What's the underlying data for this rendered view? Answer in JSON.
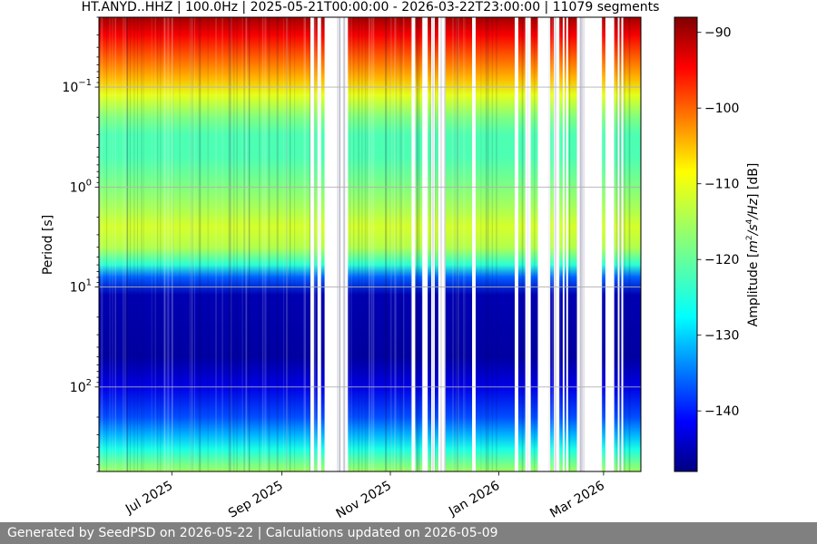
{
  "chart_data": {
    "type": "heatmap",
    "title": "HT.ANYD..HHZ | 100.0Hz | 2025-05-21T00:00:00 - 2026-03-22T23:00:00 | 11079 segments",
    "xlabel": "",
    "ylabel": "Period [s]",
    "colorbar_label": "Amplitude [m²/s⁴/Hz] [dB]",
    "colorbar_label_parts": {
      "prefix": "Amplitude [",
      "m": "m",
      "m_exp": "2",
      "s": "/s",
      "s_exp": "4",
      "hz": "/Hz",
      "suffix": "] [dB]"
    },
    "colorbar_range": [
      -148,
      -88
    ],
    "colorbar_ticks": [
      -90,
      -100,
      -110,
      -120,
      -130,
      -140
    ],
    "colorbar_tick_labels": [
      "−90",
      "−100",
      "−110",
      "−120",
      "−130",
      "−140"
    ],
    "y_scale": "log",
    "y_inverted": true,
    "ylim": [
      0.02,
      700
    ],
    "y_ticks": [
      0.1,
      1,
      10,
      100
    ],
    "y_tick_labels": [
      {
        "base": "10",
        "exp": "−1"
      },
      {
        "base": "10",
        "exp": "0"
      },
      {
        "base": "10",
        "exp": "1"
      },
      {
        "base": "10",
        "exp": "2"
      }
    ],
    "x_range": [
      "2025-05-21",
      "2026-03-22"
    ],
    "x_ticks": [
      {
        "date": "2025-07-01",
        "label": "Jul 2025"
      },
      {
        "date": "2025-09-01",
        "label": "Sep 2025"
      },
      {
        "date": "2025-11-01",
        "label": "Nov 2025"
      },
      {
        "date": "2026-01-01",
        "label": "Jan 2026"
      },
      {
        "date": "2026-03-01",
        "label": "Mar 2026"
      }
    ],
    "grid": true,
    "colormap": "jet",
    "profile_db": [
      {
        "period": 0.02,
        "db": -90
      },
      {
        "period": 0.03,
        "db": -95
      },
      {
        "period": 0.05,
        "db": -101
      },
      {
        "period": 0.08,
        "db": -106
      },
      {
        "period": 0.12,
        "db": -112
      },
      {
        "period": 0.2,
        "db": -118
      },
      {
        "period": 0.3,
        "db": -121
      },
      {
        "period": 0.5,
        "db": -121
      },
      {
        "period": 0.8,
        "db": -119
      },
      {
        "period": 1.5,
        "db": -116
      },
      {
        "period": 2.5,
        "db": -113
      },
      {
        "period": 4,
        "db": -115
      },
      {
        "period": 6,
        "db": -123
      },
      {
        "period": 8,
        "db": -135
      },
      {
        "period": 12,
        "db": -145
      },
      {
        "period": 50,
        "db": -146
      },
      {
        "period": 100,
        "db": -142
      },
      {
        "period": 200,
        "db": -136
      },
      {
        "period": 300,
        "db": -130
      },
      {
        "period": 420,
        "db": -124
      },
      {
        "period": 700,
        "db": -116
      }
    ],
    "data_gaps": [
      [
        "2025-09-17",
        "2025-09-19"
      ],
      [
        "2025-09-21",
        "2025-09-23"
      ],
      [
        "2025-09-25",
        "2025-10-08"
      ],
      [
        "2025-11-13",
        "2025-11-15"
      ],
      [
        "2025-11-19",
        "2025-11-22"
      ],
      [
        "2025-11-24",
        "2025-11-26"
      ],
      [
        "2025-11-28",
        "2025-12-02"
      ],
      [
        "2025-12-17",
        "2025-12-19"
      ],
      [
        "2026-01-10",
        "2026-01-12"
      ],
      [
        "2026-01-16",
        "2026-01-19"
      ],
      [
        "2026-01-23",
        "2026-01-30"
      ],
      [
        "2026-02-01",
        "2026-02-04"
      ],
      [
        "2026-02-06",
        "2026-02-07"
      ],
      [
        "2026-02-08",
        "2026-02-09"
      ],
      [
        "2026-02-14",
        "2026-02-28"
      ],
      [
        "2026-03-02",
        "2026-03-07"
      ],
      [
        "2026-03-09",
        "2026-03-10"
      ],
      [
        "2026-03-11",
        "2026-03-12"
      ]
    ]
  },
  "footer": {
    "text": "Generated by SeedPSD on 2026-05-22 | Calculations updated on 2026-05-09"
  }
}
